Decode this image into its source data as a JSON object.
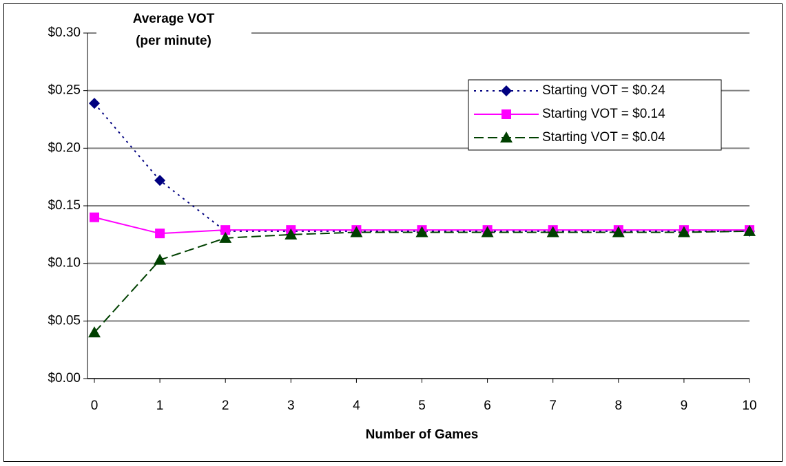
{
  "chart_data": {
    "type": "line",
    "y_axis_label": [
      "Average VOT",
      "(per minute)"
    ],
    "x_axis_label": "Number of Games",
    "x": [
      0,
      1,
      2,
      3,
      4,
      5,
      6,
      7,
      8,
      9,
      10
    ],
    "xlim": [
      0,
      10
    ],
    "xticks": [
      0,
      1,
      2,
      3,
      4,
      5,
      6,
      7,
      8,
      9,
      10
    ],
    "ylim": [
      0,
      0.3
    ],
    "yticks": [
      {
        "value": 0,
        "label": "$0.00"
      },
      {
        "value": 0.05,
        "label": "$0.05"
      },
      {
        "value": 0.1,
        "label": "$0.10"
      },
      {
        "value": 0.15,
        "label": "$0.15"
      },
      {
        "value": 0.2,
        "label": "$0.20"
      },
      {
        "value": 0.25,
        "label": "$0.25"
      },
      {
        "value": 0.3,
        "label": "$0.30"
      }
    ],
    "grid": true,
    "legend": "upper right",
    "series": [
      {
        "name": "Starting VOT = $0.24",
        "color": "#000080",
        "marker": "diamond",
        "dash": "dotted",
        "values": [
          0.239,
          0.172,
          0.128,
          0.128,
          0.128,
          0.128,
          0.128,
          0.128,
          0.128,
          0.128,
          0.128
        ]
      },
      {
        "name": "Starting VOT = $0.14",
        "color": "#ff00ff",
        "marker": "square",
        "dash": "solid",
        "values": [
          0.14,
          0.126,
          0.129,
          0.129,
          0.129,
          0.129,
          0.129,
          0.129,
          0.129,
          0.129,
          0.129
        ]
      },
      {
        "name": "Starting VOT = $0.04",
        "color": "#004000",
        "marker": "triangle",
        "dash": "dashed",
        "values": [
          0.04,
          0.103,
          0.122,
          0.125,
          0.127,
          0.127,
          0.127,
          0.127,
          0.127,
          0.127,
          0.128
        ]
      }
    ]
  }
}
